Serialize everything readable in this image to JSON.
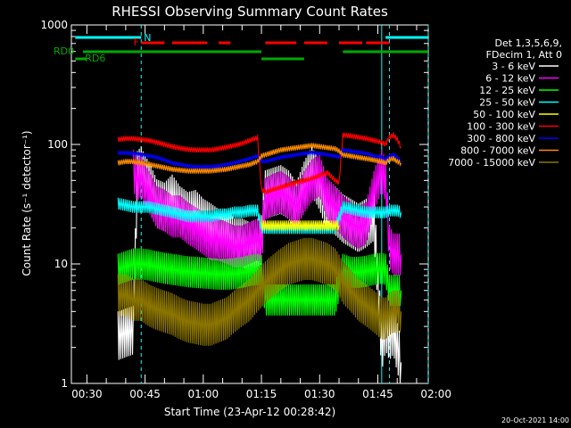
{
  "chart_data": {
    "type": "line",
    "title": "RHESSI Observing Summary Count Rates",
    "xlabel": "Start Time (23-Apr-12 00:28:42)",
    "ylabel": "Count Rate (s⁻¹ detector⁻¹)",
    "yscale": "log",
    "ylim": [
      1,
      1000
    ],
    "xlim_minutes": [
      -2,
      90
    ],
    "x_ticks": [
      {
        "min": 2,
        "label": "00:30"
      },
      {
        "min": 17,
        "label": "00:45"
      },
      {
        "min": 32,
        "label": "01:00"
      },
      {
        "min": 47,
        "label": "01:15"
      },
      {
        "min": 62,
        "label": "01:30"
      },
      {
        "min": 77,
        "label": "01:45"
      },
      {
        "min": 92,
        "label": "02:00"
      }
    ],
    "y_ticks": [
      {
        "v": 1,
        "label": "1"
      },
      {
        "v": 10,
        "label": "10"
      },
      {
        "v": 100,
        "label": "100"
      },
      {
        "v": 1000,
        "label": "1000"
      }
    ],
    "legend_header": [
      "Det 1,3,5,6,9,",
      "FDecim 1, Att 0"
    ],
    "footer_date": "20-Oct-2021 14:00",
    "series": [
      {
        "name": "3 - 6 keV",
        "color": "#ffffff",
        "x": [
          10,
          14,
          15,
          16,
          17,
          18,
          19,
          20,
          22,
          24,
          26,
          28,
          30,
          32,
          34,
          36,
          38,
          40,
          42,
          44,
          46,
          47,
          48,
          50,
          52,
          54,
          56,
          58,
          60,
          62,
          64,
          66,
          68,
          70,
          72,
          74,
          76,
          78,
          79,
          80,
          81,
          82,
          83
        ],
        "y": [
          2.5,
          2.8,
          55,
          60,
          50,
          45,
          38,
          32,
          30,
          35,
          28,
          25,
          26,
          22,
          20,
          18,
          18,
          15,
          15,
          14,
          15,
          16,
          38,
          40,
          42,
          38,
          30,
          45,
          60,
          45,
          30,
          28,
          24,
          22,
          20,
          22,
          25,
          2,
          3,
          2.5,
          2.8,
          2,
          1.5
        ]
      },
      {
        "name": "6 - 12 keV",
        "color": "#ff00ff",
        "x": [
          14,
          15,
          16,
          17,
          18,
          19,
          20,
          22,
          24,
          26,
          28,
          30,
          32,
          34,
          36,
          38,
          40,
          42,
          44,
          46,
          47,
          48,
          50,
          52,
          54,
          56,
          58,
          60,
          62,
          64,
          66,
          68,
          70,
          72,
          74,
          76,
          77,
          78,
          79,
          80,
          81,
          82,
          83
        ],
        "y": [
          60,
          50,
          55,
          45,
          40,
          35,
          30,
          28,
          25,
          25,
          22,
          20,
          18,
          16,
          16,
          15,
          14,
          14,
          15,
          16,
          15,
          35,
          38,
          40,
          36,
          30,
          40,
          50,
          55,
          35,
          30,
          25,
          22,
          20,
          22,
          40,
          50,
          60,
          50,
          14,
          12,
          12,
          12
        ]
      },
      {
        "name": "12 - 25 keV",
        "color": "#00ff00",
        "x": [
          10,
          12,
          14,
          16,
          18,
          20,
          22,
          24,
          26,
          28,
          30,
          32,
          34,
          36,
          38,
          40,
          42,
          44,
          46,
          47,
          48,
          50,
          52,
          54,
          56,
          58,
          60,
          62,
          64,
          66,
          68,
          70,
          72,
          74,
          76,
          78,
          79,
          80,
          81,
          82,
          83
        ],
        "y": [
          9,
          9.5,
          10,
          10,
          9.8,
          9.5,
          9.2,
          9,
          8.8,
          8.6,
          8.5,
          8.4,
          8.3,
          8.2,
          8.2,
          8.3,
          8.5,
          8.8,
          9,
          8.8,
          5,
          5,
          5,
          5,
          5,
          5,
          5,
          5,
          5,
          5,
          9,
          8.5,
          8.5,
          8.7,
          9,
          9.2,
          9,
          6,
          6,
          6,
          6
        ]
      },
      {
        "name": "25 - 50 keV",
        "color": "#00ffff",
        "x": [
          10,
          12,
          14,
          16,
          18,
          20,
          22,
          24,
          26,
          28,
          30,
          32,
          34,
          36,
          38,
          40,
          42,
          44,
          46,
          47,
          48,
          50,
          52,
          54,
          56,
          58,
          60,
          62,
          64,
          66,
          68,
          70,
          72,
          74,
          76,
          78,
          79,
          80,
          81,
          82,
          83
        ],
        "y": [
          32,
          31,
          30,
          30,
          30,
          29,
          28,
          27,
          26,
          25,
          25,
          25,
          25,
          26,
          26,
          27,
          27,
          28,
          28,
          20,
          20,
          20,
          20,
          20,
          20,
          20,
          20,
          20,
          20,
          20,
          30,
          29,
          28,
          27,
          27,
          27,
          27,
          28,
          28,
          28,
          27
        ]
      },
      {
        "name": "50 - 100 keV",
        "color": "#ffff00",
        "x": [
          47,
          48,
          50,
          52,
          54,
          56,
          58,
          60,
          62,
          64,
          66,
          67
        ],
        "y": [
          21,
          21,
          21,
          21,
          21,
          21,
          21,
          21,
          21,
          21,
          21,
          21
        ]
      },
      {
        "name": "100 - 300 keV",
        "color": "#ff0000",
        "x": [
          10,
          12,
          14,
          16,
          18,
          20,
          22,
          24,
          26,
          28,
          30,
          32,
          34,
          36,
          38,
          40,
          42,
          44,
          46,
          47,
          48,
          50,
          52,
          54,
          56,
          58,
          60,
          62,
          64,
          66,
          67,
          68,
          70,
          72,
          74,
          76,
          78,
          79,
          80,
          81,
          82,
          83
        ],
        "y": [
          110,
          112,
          112,
          110,
          108,
          104,
          100,
          96,
          93,
          91,
          90,
          90,
          90,
          92,
          95,
          98,
          102,
          108,
          114,
          42,
          40,
          42,
          44,
          46,
          48,
          50,
          52,
          55,
          58,
          50,
          48,
          120,
          118,
          115,
          112,
          108,
          104,
          100,
          115,
          120,
          110,
          95
        ]
      },
      {
        "name": "300 - 800 keV",
        "color": "#0000ff",
        "x": [
          10,
          12,
          14,
          16,
          18,
          20,
          22,
          24,
          26,
          28,
          30,
          32,
          34,
          36,
          38,
          40,
          42,
          44,
          46,
          47,
          48,
          50,
          52,
          54,
          56,
          58,
          60,
          62,
          64,
          66,
          67,
          68,
          70,
          72,
          74,
          76,
          78,
          79,
          80,
          81,
          82,
          83
        ],
        "y": [
          85,
          85,
          84,
          82,
          80,
          78,
          74,
          70,
          68,
          66,
          65,
          65,
          65,
          66,
          68,
          70,
          73,
          76,
          80,
          72,
          72,
          75,
          78,
          80,
          82,
          84,
          85,
          84,
          82,
          80,
          78,
          90,
          88,
          86,
          84,
          80,
          78,
          75,
          80,
          82,
          78,
          72
        ]
      },
      {
        "name": "800 - 7000 keV",
        "color": "#ff8c00",
        "x": [
          10,
          12,
          14,
          16,
          18,
          20,
          22,
          24,
          26,
          28,
          30,
          32,
          34,
          36,
          38,
          40,
          42,
          44,
          46,
          47,
          48,
          50,
          52,
          54,
          56,
          58,
          60,
          62,
          64,
          66,
          67,
          68,
          70,
          72,
          74,
          76,
          78,
          79,
          80,
          81,
          82,
          83
        ],
        "y": [
          70,
          72,
          72,
          70,
          68,
          66,
          64,
          62,
          61,
          60,
          60,
          60,
          60,
          61,
          62,
          64,
          66,
          68,
          72,
          80,
          82,
          86,
          90,
          92,
          94,
          96,
          98,
          96,
          94,
          92,
          88,
          82,
          80,
          78,
          76,
          74,
          72,
          70,
          75,
          76,
          72,
          70
        ]
      },
      {
        "name": "7000 - 15000 keV",
        "color": "#8b7500",
        "x": [
          10,
          12,
          14,
          16,
          18,
          20,
          22,
          24,
          26,
          28,
          30,
          32,
          34,
          36,
          38,
          40,
          42,
          44,
          46,
          47,
          48,
          50,
          52,
          54,
          56,
          58,
          60,
          62,
          64,
          66,
          67,
          68,
          70,
          72,
          74,
          76,
          78,
          79,
          80,
          81,
          82,
          83
        ],
        "y": [
          5.5,
          5.5,
          5,
          5,
          4.5,
          4.2,
          4,
          3.8,
          3.5,
          3.3,
          3.2,
          3.1,
          3.1,
          3.3,
          3.5,
          4,
          4.5,
          5,
          6,
          6.5,
          7,
          8,
          9,
          10,
          10.5,
          11,
          11,
          10.5,
          10,
          9,
          8,
          7,
          6,
          5,
          4.5,
          4,
          3.5,
          3.5,
          3.8,
          4,
          4,
          4
        ]
      }
    ],
    "annotations": [
      {
        "label": "N",
        "color": "#00ffff"
      },
      {
        "label": "F",
        "color": "#ff0000"
      },
      {
        "label": "RD0",
        "color": "#00aa00"
      },
      {
        "label": "RD6",
        "color": "#00aa00"
      }
    ]
  },
  "colors": {
    "background": "#000000",
    "axes": "#ffffff",
    "night_bar": "#00ffff",
    "flare_bar": "#ff0000",
    "saa_bar": "#00aa00"
  }
}
